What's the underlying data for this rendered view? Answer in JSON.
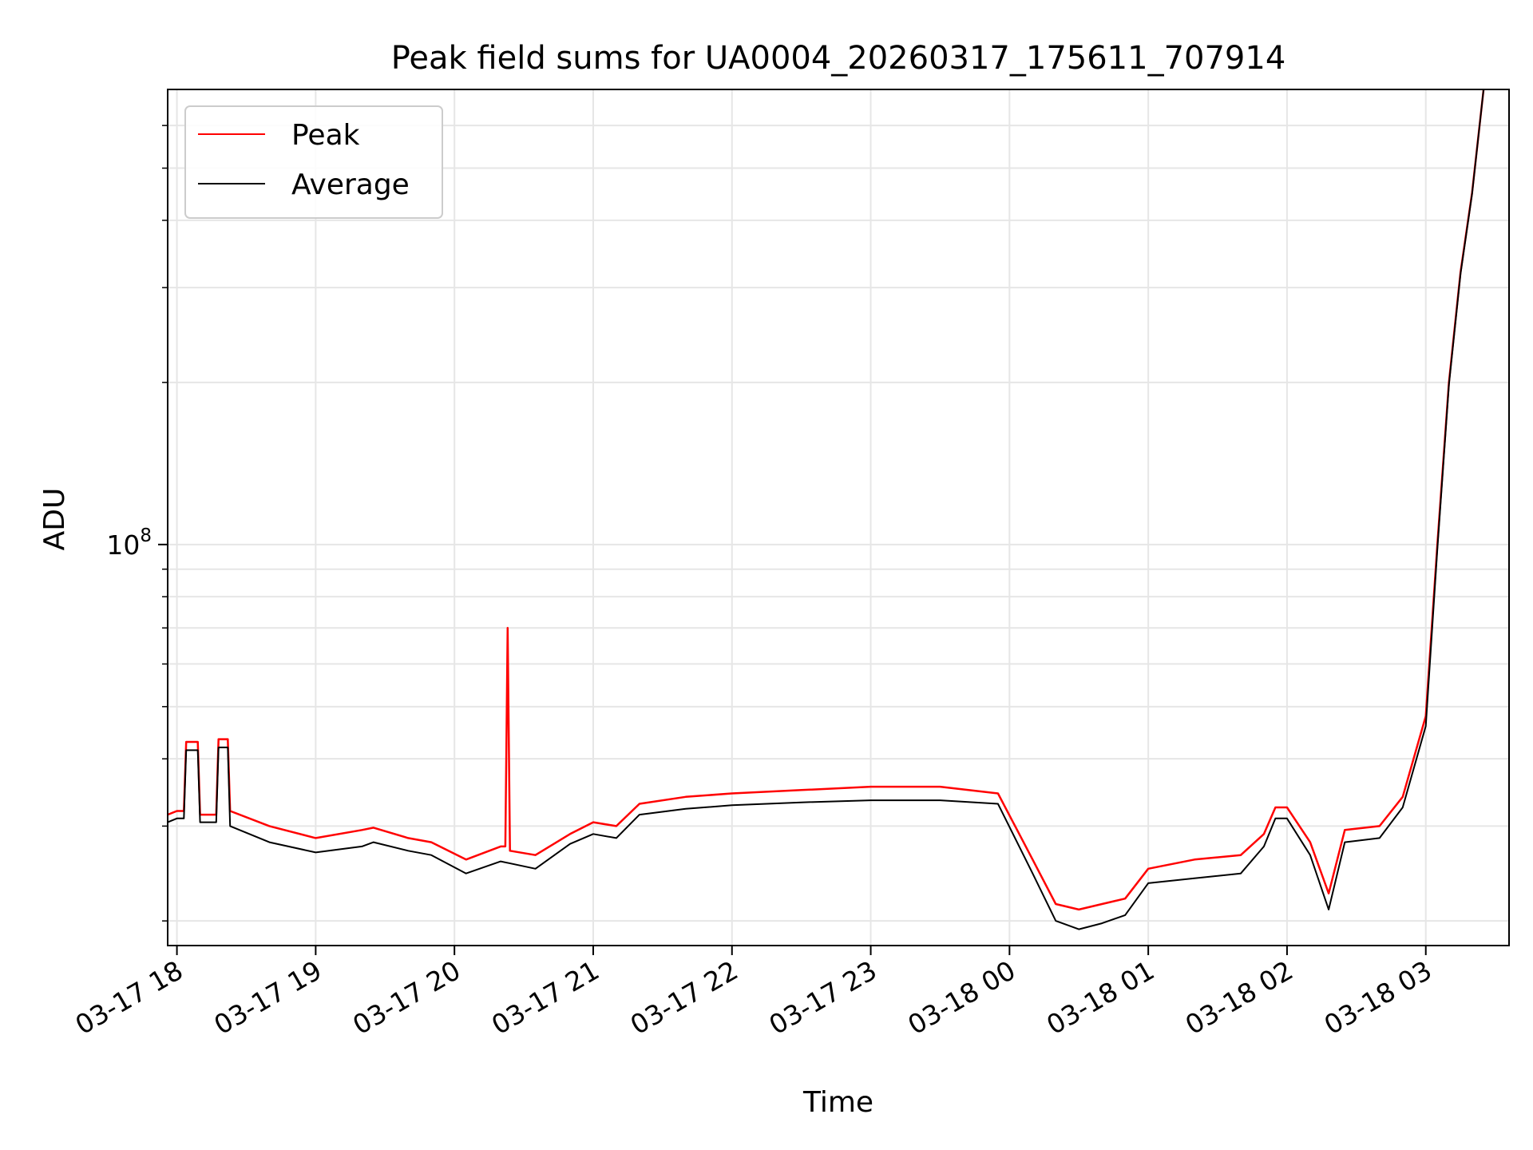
{
  "chart_data": {
    "type": "line",
    "title": "Peak field sums for UA0004_20260317_175611_707914",
    "xlabel": "Time",
    "ylabel": "ADU",
    "y_scale": "log",
    "ylim": [
      18000000,
      700000000
    ],
    "xlim": [
      "2026-03-17 17:56",
      "2026-03-18 03:36"
    ],
    "grid": true,
    "legend_position": "upper-left",
    "x_ticks": [
      {
        "t": "2026-03-17 18:00",
        "label": "03-17 18"
      },
      {
        "t": "2026-03-17 19:00",
        "label": "03-17 19"
      },
      {
        "t": "2026-03-17 20:00",
        "label": "03-17 20"
      },
      {
        "t": "2026-03-17 21:00",
        "label": "03-17 21"
      },
      {
        "t": "2026-03-17 22:00",
        "label": "03-17 22"
      },
      {
        "t": "2026-03-17 23:00",
        "label": "03-17 23"
      },
      {
        "t": "2026-03-18 00:00",
        "label": "03-18 00"
      },
      {
        "t": "2026-03-18 01:00",
        "label": "03-18 01"
      },
      {
        "t": "2026-03-18 02:00",
        "label": "03-18 02"
      },
      {
        "t": "2026-03-18 03:00",
        "label": "03-18 03"
      }
    ],
    "y_ticks_major": [
      {
        "value": 100000000,
        "base": "10",
        "exp": "8"
      }
    ],
    "y_ticks_minor": [
      20000000,
      30000000,
      40000000,
      50000000,
      60000000,
      70000000,
      80000000,
      90000000,
      200000000,
      300000000,
      400000000,
      500000000,
      600000000
    ],
    "series": [
      {
        "name": "Peak",
        "color": "#ff0000",
        "points": [
          [
            "2026-03-17 17:56",
            31500000
          ],
          [
            "2026-03-17 18:00",
            32000000
          ],
          [
            "2026-03-17 18:03",
            32000000
          ],
          [
            "2026-03-17 18:04",
            43000000
          ],
          [
            "2026-03-17 18:09",
            43000000
          ],
          [
            "2026-03-17 18:10",
            31500000
          ],
          [
            "2026-03-17 18:17",
            31500000
          ],
          [
            "2026-03-17 18:18",
            43500000
          ],
          [
            "2026-03-17 18:22",
            43500000
          ],
          [
            "2026-03-17 18:23",
            32000000
          ],
          [
            "2026-03-17 18:40",
            30000000
          ],
          [
            "2026-03-17 19:00",
            28500000
          ],
          [
            "2026-03-17 19:20",
            29500000
          ],
          [
            "2026-03-17 19:25",
            29800000
          ],
          [
            "2026-03-17 19:40",
            28500000
          ],
          [
            "2026-03-17 19:50",
            28000000
          ],
          [
            "2026-03-17 20:05",
            26000000
          ],
          [
            "2026-03-17 20:20",
            27500000
          ],
          [
            "2026-03-17 20:22",
            27500000
          ],
          [
            "2026-03-17 20:23",
            70000000
          ],
          [
            "2026-03-17 20:24",
            27000000
          ],
          [
            "2026-03-17 20:35",
            26500000
          ],
          [
            "2026-03-17 20:50",
            29000000
          ],
          [
            "2026-03-17 21:00",
            30500000
          ],
          [
            "2026-03-17 21:10",
            30000000
          ],
          [
            "2026-03-17 21:20",
            33000000
          ],
          [
            "2026-03-17 21:40",
            34000000
          ],
          [
            "2026-03-17 22:00",
            34500000
          ],
          [
            "2026-03-17 22:30",
            35000000
          ],
          [
            "2026-03-17 23:00",
            35500000
          ],
          [
            "2026-03-17 23:30",
            35500000
          ],
          [
            "2026-03-17 23:55",
            34500000
          ],
          [
            "2026-03-18 00:10",
            26000000
          ],
          [
            "2026-03-18 00:20",
            21500000
          ],
          [
            "2026-03-18 00:30",
            21000000
          ],
          [
            "2026-03-18 00:40",
            21500000
          ],
          [
            "2026-03-18 00:50",
            22000000
          ],
          [
            "2026-03-18 01:00",
            25000000
          ],
          [
            "2026-03-18 01:20",
            26000000
          ],
          [
            "2026-03-18 01:40",
            26500000
          ],
          [
            "2026-03-18 01:50",
            29000000
          ],
          [
            "2026-03-18 01:55",
            32500000
          ],
          [
            "2026-03-18 02:00",
            32500000
          ],
          [
            "2026-03-18 02:10",
            28000000
          ],
          [
            "2026-03-18 02:18",
            22500000
          ],
          [
            "2026-03-18 02:25",
            29500000
          ],
          [
            "2026-03-18 02:40",
            30000000
          ],
          [
            "2026-03-18 02:50",
            34000000
          ],
          [
            "2026-03-18 03:00",
            48000000
          ],
          [
            "2026-03-18 03:05",
            100000000
          ],
          [
            "2026-03-18 03:10",
            200000000
          ],
          [
            "2026-03-18 03:15",
            320000000
          ],
          [
            "2026-03-18 03:20",
            450000000
          ],
          [
            "2026-03-18 03:25",
            700000000
          ]
        ]
      },
      {
        "name": "Average",
        "color": "#000000",
        "points": [
          [
            "2026-03-17 17:56",
            30500000
          ],
          [
            "2026-03-17 18:00",
            31000000
          ],
          [
            "2026-03-17 18:03",
            31000000
          ],
          [
            "2026-03-17 18:04",
            41500000
          ],
          [
            "2026-03-17 18:09",
            41500000
          ],
          [
            "2026-03-17 18:10",
            30500000
          ],
          [
            "2026-03-17 18:17",
            30500000
          ],
          [
            "2026-03-17 18:18",
            42000000
          ],
          [
            "2026-03-17 18:22",
            42000000
          ],
          [
            "2026-03-17 18:23",
            30000000
          ],
          [
            "2026-03-17 18:40",
            28000000
          ],
          [
            "2026-03-17 19:00",
            26800000
          ],
          [
            "2026-03-17 19:20",
            27500000
          ],
          [
            "2026-03-17 19:25",
            28000000
          ],
          [
            "2026-03-17 19:40",
            27000000
          ],
          [
            "2026-03-17 19:50",
            26500000
          ],
          [
            "2026-03-17 20:05",
            24500000
          ],
          [
            "2026-03-17 20:20",
            25800000
          ],
          [
            "2026-03-17 20:35",
            25000000
          ],
          [
            "2026-03-17 20:50",
            27800000
          ],
          [
            "2026-03-17 21:00",
            29000000
          ],
          [
            "2026-03-17 21:10",
            28500000
          ],
          [
            "2026-03-17 21:20",
            31500000
          ],
          [
            "2026-03-17 21:40",
            32300000
          ],
          [
            "2026-03-17 22:00",
            32800000
          ],
          [
            "2026-03-17 22:30",
            33200000
          ],
          [
            "2026-03-17 23:00",
            33500000
          ],
          [
            "2026-03-17 23:30",
            33500000
          ],
          [
            "2026-03-17 23:55",
            33000000
          ],
          [
            "2026-03-18 00:10",
            24500000
          ],
          [
            "2026-03-18 00:20",
            20000000
          ],
          [
            "2026-03-18 00:30",
            19300000
          ],
          [
            "2026-03-18 00:40",
            19800000
          ],
          [
            "2026-03-18 00:50",
            20500000
          ],
          [
            "2026-03-18 01:00",
            23500000
          ],
          [
            "2026-03-18 01:20",
            24000000
          ],
          [
            "2026-03-18 01:40",
            24500000
          ],
          [
            "2026-03-18 01:50",
            27500000
          ],
          [
            "2026-03-18 01:55",
            31000000
          ],
          [
            "2026-03-18 02:00",
            31000000
          ],
          [
            "2026-03-18 02:10",
            26500000
          ],
          [
            "2026-03-18 02:18",
            21000000
          ],
          [
            "2026-03-18 02:25",
            28000000
          ],
          [
            "2026-03-18 02:40",
            28500000
          ],
          [
            "2026-03-18 02:50",
            32500000
          ],
          [
            "2026-03-18 03:00",
            46000000
          ],
          [
            "2026-03-18 03:05",
            98000000
          ],
          [
            "2026-03-18 03:10",
            198000000
          ],
          [
            "2026-03-18 03:15",
            318000000
          ],
          [
            "2026-03-18 03:20",
            448000000
          ],
          [
            "2026-03-18 03:25",
            700000000
          ]
        ]
      }
    ]
  }
}
